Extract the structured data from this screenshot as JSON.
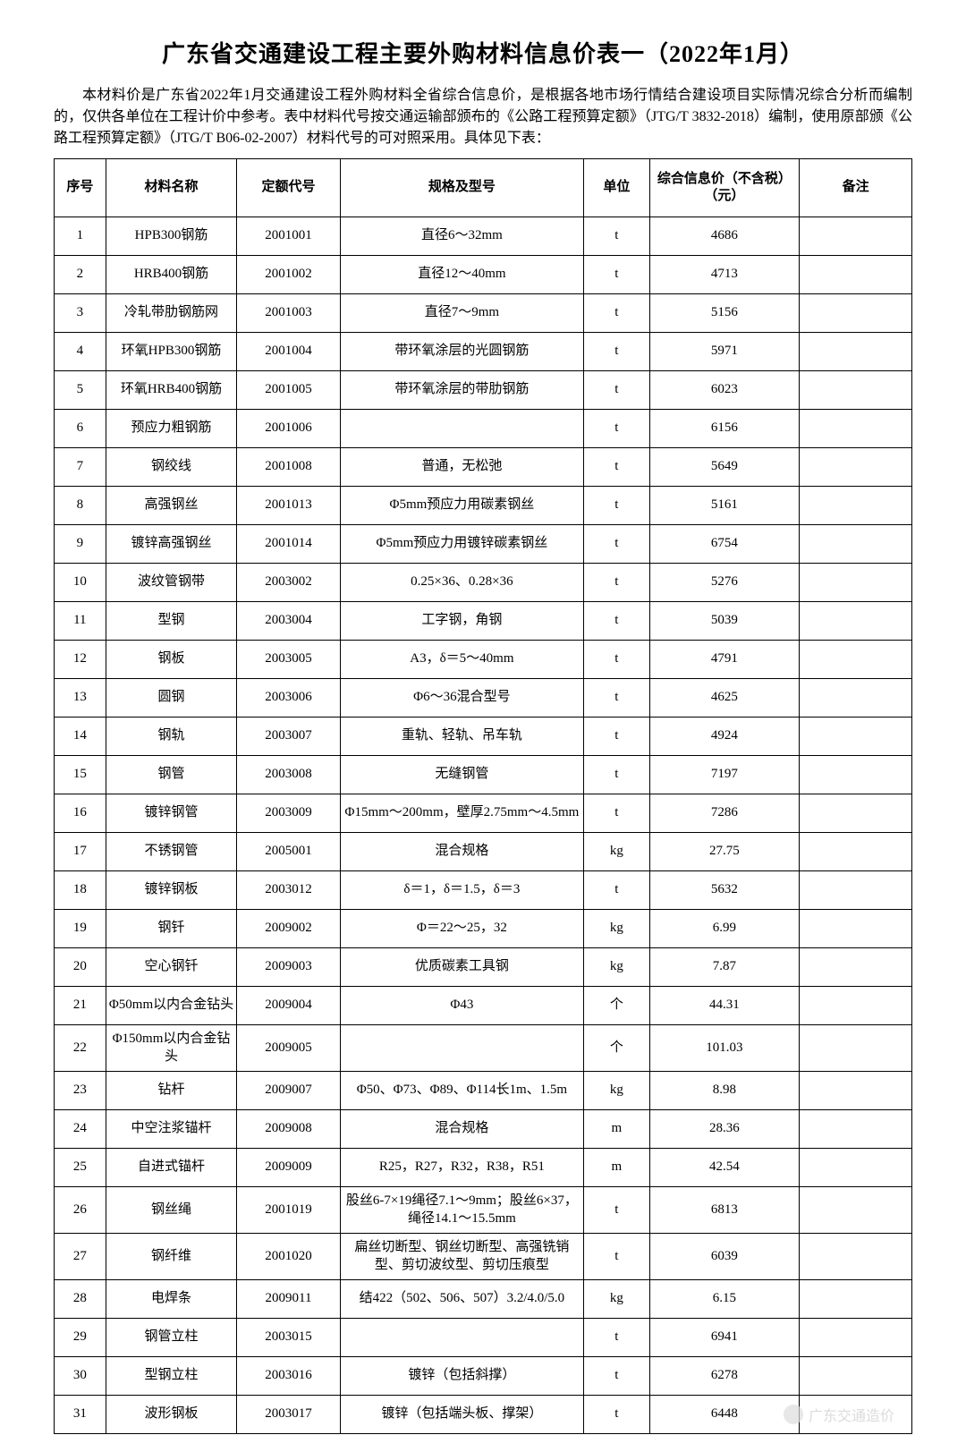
{
  "title": "广东省交通建设工程主要外购材料信息价表一（2022年1月）",
  "intro": "本材料价是广东省2022年1月交通建设工程外购材料全省综合信息价，是根据各地市场行情结合建设项目实际情况综合分析而编制的，仅供各单位在工程计价中参考。表中材料代号按交通运输部颁布的《公路工程预算定额》（JTG/T 3832-2018）编制，使用原部颁《公路工程预算定额》（JTG/T B06-02-2007）材料代号的可对照采用。具体见下表：",
  "headers": {
    "seq": "序号",
    "name": "材料名称",
    "code": "定额代号",
    "spec": "规格及型号",
    "unit": "单位",
    "price": "综合信息价（不含税）（元）",
    "remark": "备注"
  },
  "rows": [
    {
      "seq": "1",
      "name": "HPB300钢筋",
      "code": "2001001",
      "spec": "直径6～32mm",
      "unit": "t",
      "price": "4686",
      "remark": ""
    },
    {
      "seq": "2",
      "name": "HRB400钢筋",
      "code": "2001002",
      "spec": "直径12～40mm",
      "unit": "t",
      "price": "4713",
      "remark": ""
    },
    {
      "seq": "3",
      "name": "冷轧带肋钢筋网",
      "code": "2001003",
      "spec": "直径7～9mm",
      "unit": "t",
      "price": "5156",
      "remark": ""
    },
    {
      "seq": "4",
      "name": "环氧HPB300钢筋",
      "code": "2001004",
      "spec": "带环氧涂层的光圆钢筋",
      "unit": "t",
      "price": "5971",
      "remark": ""
    },
    {
      "seq": "5",
      "name": "环氧HRB400钢筋",
      "code": "2001005",
      "spec": "带环氧涂层的带肋钢筋",
      "unit": "t",
      "price": "6023",
      "remark": ""
    },
    {
      "seq": "6",
      "name": "预应力粗钢筋",
      "code": "2001006",
      "spec": "",
      "unit": "t",
      "price": "6156",
      "remark": ""
    },
    {
      "seq": "7",
      "name": "钢绞线",
      "code": "2001008",
      "spec": "普通，无松弛",
      "unit": "t",
      "price": "5649",
      "remark": ""
    },
    {
      "seq": "8",
      "name": "高强钢丝",
      "code": "2001013",
      "spec": "Φ5mm预应力用碳素钢丝",
      "unit": "t",
      "price": "5161",
      "remark": ""
    },
    {
      "seq": "9",
      "name": "镀锌高强钢丝",
      "code": "2001014",
      "spec": "Φ5mm预应力用镀锌碳素钢丝",
      "unit": "t",
      "price": "6754",
      "remark": ""
    },
    {
      "seq": "10",
      "name": "波纹管钢带",
      "code": "2003002",
      "spec": "0.25×36、0.28×36",
      "unit": "t",
      "price": "5276",
      "remark": ""
    },
    {
      "seq": "11",
      "name": "型钢",
      "code": "2003004",
      "spec": "工字钢，角钢",
      "unit": "t",
      "price": "5039",
      "remark": ""
    },
    {
      "seq": "12",
      "name": "钢板",
      "code": "2003005",
      "spec": "A3，δ＝5～40mm",
      "unit": "t",
      "price": "4791",
      "remark": ""
    },
    {
      "seq": "13",
      "name": "圆钢",
      "code": "2003006",
      "spec": "Φ6～36混合型号",
      "unit": "t",
      "price": "4625",
      "remark": ""
    },
    {
      "seq": "14",
      "name": "钢轨",
      "code": "2003007",
      "spec": "重轨、轻轨、吊车轨",
      "unit": "t",
      "price": "4924",
      "remark": ""
    },
    {
      "seq": "15",
      "name": "钢管",
      "code": "2003008",
      "spec": "无缝钢管",
      "unit": "t",
      "price": "7197",
      "remark": ""
    },
    {
      "seq": "16",
      "name": "镀锌钢管",
      "code": "2003009",
      "spec": "Φ15mm～200mm，壁厚2.75mm～4.5mm",
      "unit": "t",
      "price": "7286",
      "remark": ""
    },
    {
      "seq": "17",
      "name": "不锈钢管",
      "code": "2005001",
      "spec": "混合规格",
      "unit": "kg",
      "price": "27.75",
      "remark": ""
    },
    {
      "seq": "18",
      "name": "镀锌钢板",
      "code": "2003012",
      "spec": "δ＝1，δ＝1.5，δ＝3",
      "unit": "t",
      "price": "5632",
      "remark": ""
    },
    {
      "seq": "19",
      "name": "钢钎",
      "code": "2009002",
      "spec": "Φ＝22～25，32",
      "unit": "kg",
      "price": "6.99",
      "remark": ""
    },
    {
      "seq": "20",
      "name": "空心钢钎",
      "code": "2009003",
      "spec": "优质碳素工具钢",
      "unit": "kg",
      "price": "7.87",
      "remark": ""
    },
    {
      "seq": "21",
      "name": "Φ50mm以内合金钻头",
      "code": "2009004",
      "spec": "Φ43",
      "unit": "个",
      "price": "44.31",
      "remark": ""
    },
    {
      "seq": "22",
      "name": "Φ150mm以内合金钻头",
      "code": "2009005",
      "spec": "",
      "unit": "个",
      "price": "101.03",
      "remark": ""
    },
    {
      "seq": "23",
      "name": "钻杆",
      "code": "2009007",
      "spec": "Φ50、Φ73、Φ89、Φ114长1m、1.5m",
      "unit": "kg",
      "price": "8.98",
      "remark": ""
    },
    {
      "seq": "24",
      "name": "中空注浆锚杆",
      "code": "2009008",
      "spec": "混合规格",
      "unit": "m",
      "price": "28.36",
      "remark": ""
    },
    {
      "seq": "25",
      "name": "自进式锚杆",
      "code": "2009009",
      "spec": "R25，R27，R32，R38，R51",
      "unit": "m",
      "price": "42.54",
      "remark": ""
    },
    {
      "seq": "26",
      "name": "钢丝绳",
      "code": "2001019",
      "spec": "股丝6-7×19绳径7.1～9mm；股丝6×37，绳径14.1～15.5mm",
      "unit": "t",
      "price": "6813",
      "remark": ""
    },
    {
      "seq": "27",
      "name": "钢纤维",
      "code": "2001020",
      "spec": "扁丝切断型、钢丝切断型、高强铣销型、剪切波纹型、剪切压痕型",
      "unit": "t",
      "price": "6039",
      "remark": ""
    },
    {
      "seq": "28",
      "name": "电焊条",
      "code": "2009011",
      "spec": "结422（502、506、507）3.2/4.0/5.0",
      "unit": "kg",
      "price": "6.15",
      "remark": ""
    },
    {
      "seq": "29",
      "name": "钢管立柱",
      "code": "2003015",
      "spec": "",
      "unit": "t",
      "price": "6941",
      "remark": ""
    },
    {
      "seq": "30",
      "name": "型钢立柱",
      "code": "2003016",
      "spec": "镀锌（包括斜撑）",
      "unit": "t",
      "price": "6278",
      "remark": ""
    },
    {
      "seq": "31",
      "name": "波形钢板",
      "code": "2003017",
      "spec": "镀锌（包括端头板、撑架）",
      "unit": "t",
      "price": "6448",
      "remark": ""
    }
  ],
  "watermark": {
    "text": "广东交通造价"
  },
  "style": {
    "title_fontsize": 26,
    "body_fontsize": 16,
    "cell_fontsize": 15,
    "border_color": "#000000",
    "text_color": "#000000",
    "background_color": "#ffffff",
    "watermark_color": "#cccccc"
  }
}
